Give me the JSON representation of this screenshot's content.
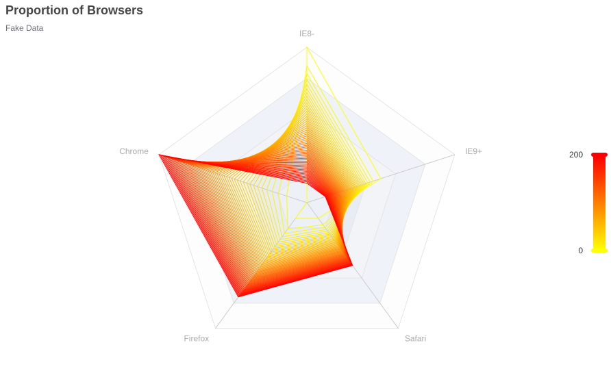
{
  "chart_data": {
    "type": "radar",
    "title": "Proportion of Browsers",
    "subtitle": "Fake Data",
    "indicators": [
      {
        "name": "IE8-",
        "max": 400
      },
      {
        "name": "IE9+",
        "max": 400
      },
      {
        "name": "Safari",
        "max": 400
      },
      {
        "name": "Firefox",
        "max": 400
      },
      {
        "name": "Chrome",
        "max": 400
      }
    ],
    "split_number": 5,
    "series_count": 55,
    "series_first": {
      "IE8-": 400,
      "IE9+": 200,
      "Safari": 50,
      "Firefox": 50,
      "Chrome": 0
    },
    "series_last": {
      "IE8-": 50,
      "IE9+": 50,
      "Safari": 200,
      "Firefox": 300,
      "Chrome": 400
    },
    "visual_map": {
      "min": 0,
      "max": 200,
      "min_label": "0",
      "max_label": "200",
      "colors": [
        "#ffff00",
        "#ff0000"
      ]
    }
  }
}
